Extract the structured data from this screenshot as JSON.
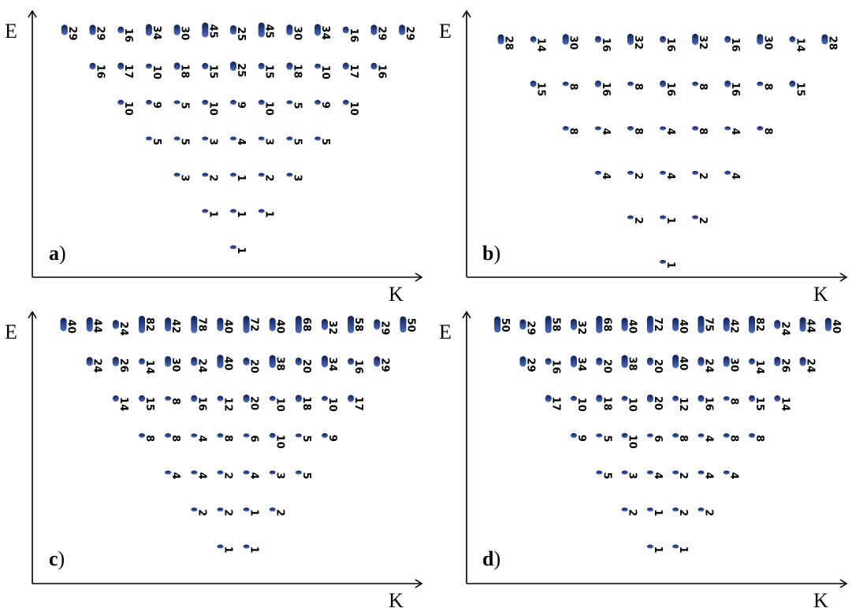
{
  "axes": {
    "x_label": "K",
    "y_label": "E"
  },
  "colors": {
    "marker_light": "#4a6cc8",
    "marker_dark": "#0e1f55"
  },
  "chart_data": [
    {
      "type": "scatter",
      "panel_label": "a",
      "rows": [
        [
          29,
          29,
          16,
          34,
          30,
          45,
          25,
          45,
          30,
          34,
          16,
          29,
          29
        ],
        [
          16,
          17,
          10,
          18,
          15,
          25,
          15,
          18,
          10,
          17,
          16
        ],
        [
          10,
          9,
          5,
          10,
          9,
          10,
          5,
          9,
          10
        ],
        [
          5,
          5,
          3,
          4,
          3,
          5,
          5
        ],
        [
          3,
          2,
          1,
          2,
          3
        ],
        [
          1,
          1,
          1
        ],
        [
          1
        ]
      ]
    },
    {
      "type": "scatter",
      "panel_label": "b",
      "rows": [
        [
          28,
          14,
          30,
          16,
          32,
          16,
          32,
          16,
          30,
          14,
          28
        ],
        [
          15,
          8,
          16,
          8,
          16,
          8,
          16,
          8,
          15
        ],
        [
          8,
          4,
          8,
          4,
          8,
          4,
          8
        ],
        [
          4,
          2,
          4,
          2,
          4
        ],
        [
          2,
          1,
          2
        ],
        [
          1
        ]
      ]
    },
    {
      "type": "scatter",
      "panel_label": "c",
      "rows": [
        [
          40,
          44,
          24,
          82,
          42,
          78,
          40,
          72,
          40,
          68,
          32,
          58,
          29,
          50
        ],
        [
          24,
          26,
          14,
          30,
          24,
          40,
          20,
          38,
          20,
          34,
          16,
          29
        ],
        [
          14,
          15,
          8,
          16,
          12,
          20,
          10,
          18,
          10,
          17
        ],
        [
          8,
          8,
          4,
          8,
          6,
          10,
          5,
          9
        ],
        [
          4,
          4,
          2,
          4,
          3,
          5
        ],
        [
          2,
          2,
          1,
          2
        ],
        [
          1,
          1
        ]
      ]
    },
    {
      "type": "scatter",
      "panel_label": "d",
      "rows": [
        [
          50,
          29,
          58,
          32,
          68,
          40,
          72,
          40,
          75,
          42,
          82,
          24,
          44,
          40
        ],
        [
          29,
          16,
          34,
          20,
          38,
          20,
          40,
          24,
          30,
          14,
          26,
          24
        ],
        [
          17,
          10,
          18,
          10,
          20,
          12,
          16,
          8,
          15,
          14
        ],
        [
          9,
          5,
          10,
          6,
          8,
          4,
          8,
          8
        ],
        [
          5,
          3,
          4,
          2,
          4,
          4
        ],
        [
          2,
          1,
          2,
          2
        ],
        [
          1,
          1
        ]
      ]
    }
  ]
}
